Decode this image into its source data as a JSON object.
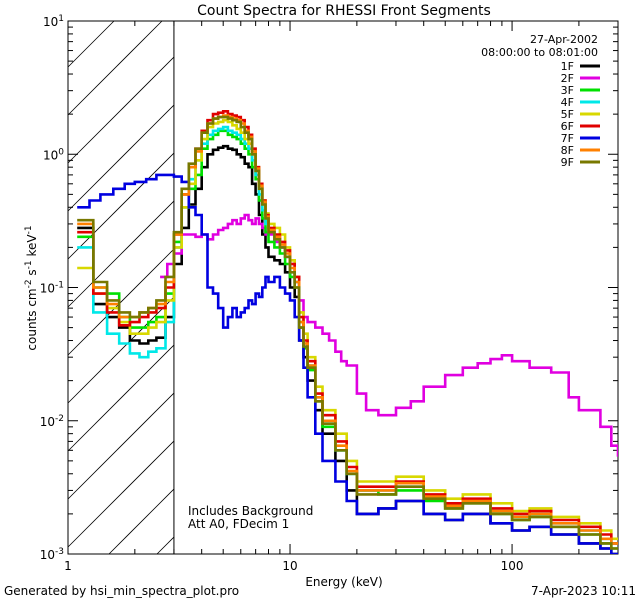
{
  "chart_data": {
    "type": "line",
    "title": "Count Spectra for RHESSI Front Segments",
    "xlabel": "Energy (keV)",
    "ylabel": "counts cm^-2 s^-1 keV^-1",
    "xscale": "log",
    "yscale": "log",
    "xlim": [
      1.0,
      300
    ],
    "ylim": [
      0.001,
      10
    ],
    "x_ticks": [
      1,
      10,
      100
    ],
    "x_tick_labels": [
      "1",
      "10",
      "100"
    ],
    "y_ticks": [
      0.001,
      0.01,
      0.1,
      1,
      10
    ],
    "y_tick_labels": [
      {
        "base": "10",
        "exp": "-3"
      },
      {
        "base": "10",
        "exp": "-2"
      },
      {
        "base": "10",
        "exp": "-1"
      },
      {
        "base": "10",
        "exp": "0"
      },
      {
        "base": "10",
        "exp": "1"
      }
    ],
    "hatched_region_keV": [
      1.0,
      3.0
    ],
    "date": "27-Apr-2002",
    "time_range": "08:00:00 to 08:01:00",
    "annotations": [
      "Includes Background",
      "Att A0, FDecim 1"
    ],
    "series": [
      {
        "name": "1F",
        "color": "#000000",
        "x": [
          1.1,
          1.3,
          1.5,
          1.7,
          1.9,
          2.1,
          2.3,
          2.5,
          2.75,
          3.0,
          3.25,
          3.5,
          3.75,
          4.0,
          4.25,
          4.5,
          4.75,
          5.0,
          5.25,
          5.5,
          5.75,
          6.0,
          6.25,
          6.5,
          6.75,
          7.0,
          7.25,
          7.5,
          7.75,
          8.0,
          8.5,
          9.0,
          9.5,
          10.0,
          10.5,
          11.0,
          11.5,
          12.0,
          13.0,
          14.0,
          16.0,
          18.0,
          20.0,
          25.0,
          30.0,
          40.0,
          50.0,
          60.0,
          80.0,
          100.0,
          120.0,
          150.0,
          200.0,
          250.0,
          280.0
        ],
        "y": [
          0.28,
          0.075,
          0.06,
          0.05,
          0.04,
          0.038,
          0.04,
          0.042,
          0.06,
          0.15,
          0.28,
          0.42,
          0.55,
          0.8,
          1.0,
          1.08,
          1.12,
          1.15,
          1.1,
          1.08,
          1.0,
          0.95,
          0.85,
          0.8,
          0.6,
          0.5,
          0.35,
          0.25,
          0.2,
          0.17,
          0.16,
          0.15,
          0.13,
          0.1,
          0.085,
          0.04,
          0.03,
          0.02,
          0.012,
          0.008,
          0.005,
          0.003,
          0.002,
          0.0022,
          0.0025,
          0.002,
          0.0018,
          0.002,
          0.0017,
          0.0015,
          0.0016,
          0.0014,
          0.0012,
          0.0011,
          0.001
        ]
      },
      {
        "name": "2F",
        "color": "#e000e0",
        "x": [
          2.6,
          2.8,
          3.0,
          3.25,
          3.5,
          3.75,
          4.0,
          4.25,
          4.5,
          4.75,
          5.0,
          5.25,
          5.5,
          5.75,
          6.0,
          6.25,
          6.5,
          6.75,
          7.0,
          7.25,
          7.5,
          7.75,
          8.0,
          8.5,
          9.0,
          9.5,
          10.0,
          10.5,
          11.0,
          11.5,
          12.0,
          13.0,
          14.0,
          15.0,
          16.0,
          17.0,
          18.0,
          20.0,
          22.0,
          25.0,
          28.0,
          30.0,
          35.0,
          40.0,
          50.0,
          60.0,
          70.0,
          80.0,
          90.0,
          100.0,
          120.0,
          150.0,
          180.0,
          200.0,
          250.0,
          280.0,
          300.0
        ],
        "y": [
          0.12,
          0.15,
          0.18,
          0.25,
          0.25,
          0.24,
          0.25,
          0.23,
          0.25,
          0.27,
          0.28,
          0.3,
          0.32,
          0.3,
          0.33,
          0.35,
          0.32,
          0.3,
          0.33,
          0.3,
          0.28,
          0.25,
          0.25,
          0.22,
          0.2,
          0.17,
          0.15,
          0.11,
          0.08,
          0.06,
          0.055,
          0.05,
          0.045,
          0.04,
          0.033,
          0.028,
          0.026,
          0.016,
          0.012,
          0.011,
          0.011,
          0.0125,
          0.014,
          0.018,
          0.022,
          0.025,
          0.027,
          0.029,
          0.031,
          0.028,
          0.025,
          0.023,
          0.015,
          0.012,
          0.009,
          0.0065,
          0.0055
        ]
      },
      {
        "name": "3F",
        "color": "#00e000",
        "x": [
          1.1,
          1.3,
          1.5,
          1.7,
          1.9,
          2.1,
          2.3,
          2.5,
          2.75,
          3.0,
          3.25,
          3.5,
          3.75,
          4.0,
          4.25,
          4.5,
          4.75,
          5.0,
          5.25,
          5.5,
          5.75,
          6.0,
          6.25,
          6.5,
          6.75,
          7.0,
          7.25,
          7.5,
          7.75,
          8.0,
          8.5,
          9.0,
          9.5,
          10.0,
          10.5,
          11.0,
          11.5,
          12.0,
          13.0,
          14.0,
          16.0,
          18.0,
          20.0,
          25.0,
          30.0,
          40.0,
          50.0,
          60.0,
          80.0,
          100.0,
          120.0,
          150.0,
          200.0,
          250.0,
          280.0
        ],
        "y": [
          0.24,
          0.1,
          0.09,
          0.06,
          0.05,
          0.05,
          0.055,
          0.06,
          0.09,
          0.22,
          0.4,
          0.55,
          0.7,
          1.1,
          1.3,
          1.4,
          1.5,
          1.5,
          1.4,
          1.35,
          1.3,
          1.2,
          1.1,
          1.0,
          0.8,
          0.65,
          0.45,
          0.33,
          0.26,
          0.22,
          0.2,
          0.18,
          0.15,
          0.12,
          0.1,
          0.05,
          0.035,
          0.024,
          0.014,
          0.009,
          0.006,
          0.004,
          0.003,
          0.0028,
          0.003,
          0.0025,
          0.0022,
          0.0024,
          0.002,
          0.0018,
          0.0019,
          0.0016,
          0.0014,
          0.0012,
          0.0011
        ]
      },
      {
        "name": "4F",
        "color": "#00e8e8",
        "x": [
          1.1,
          1.3,
          1.5,
          1.7,
          1.9,
          2.1,
          2.3,
          2.5,
          2.75,
          3.0,
          3.25,
          3.5,
          3.75,
          4.0,
          4.25,
          4.5,
          4.75,
          5.0,
          5.25,
          5.5,
          5.75,
          6.0,
          6.25,
          6.5,
          6.75,
          7.0,
          7.25,
          7.5,
          7.75,
          8.0,
          8.5,
          9.0,
          9.5,
          10.0,
          10.5,
          11.0,
          11.5,
          12.0,
          13.0,
          14.0,
          16.0,
          18.0,
          20.0,
          25.0,
          30.0,
          40.0,
          50.0,
          60.0,
          80.0,
          100.0,
          120.0,
          150.0,
          200.0,
          250.0,
          280.0
        ],
        "y": [
          0.2,
          0.065,
          0.045,
          0.038,
          0.032,
          0.03,
          0.033,
          0.035,
          0.055,
          0.2,
          0.4,
          0.65,
          0.9,
          1.2,
          1.4,
          1.5,
          1.55,
          1.6,
          1.5,
          1.45,
          1.4,
          1.3,
          1.2,
          1.1,
          0.9,
          0.7,
          0.5,
          0.38,
          0.3,
          0.26,
          0.23,
          0.2,
          0.17,
          0.13,
          0.11,
          0.055,
          0.038,
          0.026,
          0.015,
          0.01,
          0.006,
          0.004,
          0.003,
          0.003,
          0.0032,
          0.0026,
          0.0023,
          0.0025,
          0.0021,
          0.0019,
          0.002,
          0.0017,
          0.0015,
          0.0013,
          0.0012
        ]
      },
      {
        "name": "5F",
        "color": "#d8d800",
        "x": [
          1.1,
          1.3,
          1.5,
          1.7,
          1.9,
          2.1,
          2.3,
          2.5,
          2.75,
          3.0,
          3.25,
          3.5,
          3.75,
          4.0,
          4.25,
          4.5,
          4.75,
          5.0,
          5.25,
          5.5,
          5.75,
          6.0,
          6.25,
          6.5,
          6.75,
          7.0,
          7.25,
          7.5,
          7.75,
          8.0,
          8.5,
          9.0,
          9.5,
          10.0,
          10.5,
          11.0,
          11.5,
          12.0,
          13.0,
          14.0,
          16.0,
          18.0,
          20.0,
          25.0,
          30.0,
          40.0,
          50.0,
          60.0,
          80.0,
          100.0,
          120.0,
          150.0,
          200.0,
          250.0,
          280.0
        ],
        "y": [
          0.14,
          0.09,
          0.07,
          0.055,
          0.045,
          0.045,
          0.05,
          0.055,
          0.08,
          0.2,
          0.4,
          0.6,
          0.9,
          1.3,
          1.6,
          1.7,
          1.75,
          1.8,
          1.75,
          1.65,
          1.55,
          1.45,
          1.3,
          1.2,
          1.0,
          0.8,
          0.58,
          0.45,
          0.36,
          0.3,
          0.28,
          0.25,
          0.2,
          0.16,
          0.12,
          0.065,
          0.045,
          0.03,
          0.018,
          0.012,
          0.008,
          0.005,
          0.0035,
          0.0035,
          0.0038,
          0.003,
          0.0026,
          0.0028,
          0.0024,
          0.0021,
          0.0022,
          0.0019,
          0.0017,
          0.0015,
          0.0013
        ]
      },
      {
        "name": "6F",
        "color": "#e00000",
        "x": [
          1.1,
          1.3,
          1.5,
          1.7,
          1.9,
          2.1,
          2.3,
          2.5,
          2.75,
          3.0,
          3.25,
          3.5,
          3.75,
          4.0,
          4.25,
          4.5,
          4.75,
          5.0,
          5.25,
          5.5,
          5.75,
          6.0,
          6.25,
          6.5,
          6.75,
          7.0,
          7.25,
          7.5,
          7.75,
          8.0,
          8.5,
          9.0,
          9.5,
          10.0,
          10.5,
          11.0,
          11.5,
          12.0,
          13.0,
          14.0,
          16.0,
          18.0,
          20.0,
          25.0,
          30.0,
          40.0,
          50.0,
          60.0,
          80.0,
          100.0,
          120.0,
          150.0,
          200.0,
          250.0,
          280.0
        ],
        "y": [
          0.26,
          0.09,
          0.065,
          0.052,
          0.055,
          0.06,
          0.065,
          0.07,
          0.1,
          0.25,
          0.5,
          0.8,
          1.1,
          1.5,
          1.8,
          2.0,
          2.05,
          2.1,
          2.0,
          1.95,
          1.9,
          1.8,
          1.6,
          1.4,
          1.1,
          0.8,
          0.6,
          0.45,
          0.35,
          0.28,
          0.25,
          0.22,
          0.19,
          0.15,
          0.12,
          0.06,
          0.04,
          0.028,
          0.016,
          0.011,
          0.007,
          0.0045,
          0.0032,
          0.0032,
          0.0035,
          0.0028,
          0.0024,
          0.0026,
          0.0022,
          0.002,
          0.0021,
          0.0018,
          0.0016,
          0.0014,
          0.0012
        ]
      },
      {
        "name": "7F",
        "color": "#0000e0",
        "x": [
          1.1,
          1.25,
          1.4,
          1.6,
          1.8,
          2.0,
          2.25,
          2.5,
          2.75,
          3.0,
          3.25,
          3.5,
          3.75,
          4.0,
          4.25,
          4.5,
          4.75,
          5.0,
          5.25,
          5.5,
          5.75,
          6.0,
          6.25,
          6.5,
          6.75,
          7.0,
          7.25,
          7.5,
          7.75,
          8.0,
          8.5,
          9.0,
          9.5,
          10.0,
          10.5,
          11.0,
          11.5,
          12.0,
          13.0,
          14.0,
          16.0,
          18.0,
          20.0,
          25.0,
          30.0,
          40.0,
          50.0,
          60.0,
          80.0,
          100.0,
          120.0,
          150.0,
          200.0,
          250.0,
          280.0
        ],
        "y": [
          0.4,
          0.45,
          0.5,
          0.55,
          0.6,
          0.62,
          0.65,
          0.7,
          0.7,
          0.68,
          0.62,
          0.4,
          0.35,
          0.25,
          0.1,
          0.09,
          0.07,
          0.05,
          0.06,
          0.07,
          0.06,
          0.065,
          0.07,
          0.08,
          0.075,
          0.09,
          0.085,
          0.1,
          0.12,
          0.11,
          0.12,
          0.1,
          0.09,
          0.08,
          0.06,
          0.04,
          0.025,
          0.015,
          0.008,
          0.005,
          0.0035,
          0.0025,
          0.002,
          0.0022,
          0.0025,
          0.002,
          0.0018,
          0.002,
          0.0017,
          0.0015,
          0.0016,
          0.0014,
          0.0012,
          0.0011,
          0.001
        ]
      },
      {
        "name": "8F",
        "color": "#ff8000",
        "x": [
          1.1,
          1.3,
          1.5,
          1.7,
          1.9,
          2.1,
          2.3,
          2.5,
          2.75,
          3.0,
          3.25,
          3.5,
          3.75,
          4.0,
          4.25,
          4.5,
          4.75,
          5.0,
          5.25,
          5.5,
          5.75,
          6.0,
          6.25,
          6.5,
          6.75,
          7.0,
          7.25,
          7.5,
          7.75,
          8.0,
          8.5,
          9.0,
          9.5,
          10.0,
          10.5,
          11.0,
          11.5,
          12.0,
          13.0,
          14.0,
          16.0,
          18.0,
          20.0,
          25.0,
          30.0,
          40.0,
          50.0,
          60.0,
          80.0,
          100.0,
          120.0,
          150.0,
          200.0,
          250.0,
          280.0
        ],
        "y": [
          0.3,
          0.1,
          0.075,
          0.06,
          0.06,
          0.065,
          0.07,
          0.075,
          0.11,
          0.25,
          0.5,
          0.8,
          1.05,
          1.45,
          1.7,
          1.85,
          1.9,
          1.95,
          1.9,
          1.85,
          1.8,
          1.7,
          1.5,
          1.35,
          1.05,
          0.78,
          0.58,
          0.44,
          0.34,
          0.27,
          0.24,
          0.21,
          0.18,
          0.14,
          0.11,
          0.055,
          0.038,
          0.026,
          0.015,
          0.01,
          0.0065,
          0.0042,
          0.003,
          0.003,
          0.0034,
          0.0027,
          0.0023,
          0.0025,
          0.0021,
          0.0019,
          0.002,
          0.0017,
          0.0015,
          0.0013,
          0.0012
        ]
      },
      {
        "name": "9F",
        "color": "#787800",
        "x": [
          1.1,
          1.3,
          1.5,
          1.7,
          1.9,
          2.1,
          2.3,
          2.5,
          2.75,
          3.0,
          3.25,
          3.5,
          3.75,
          4.0,
          4.25,
          4.5,
          4.75,
          5.0,
          5.25,
          5.5,
          5.75,
          6.0,
          6.25,
          6.5,
          6.75,
          7.0,
          7.25,
          7.5,
          7.75,
          8.0,
          8.5,
          9.0,
          9.5,
          10.0,
          10.5,
          11.0,
          11.5,
          12.0,
          13.0,
          14.0,
          16.0,
          18.0,
          20.0,
          25.0,
          30.0,
          40.0,
          50.0,
          60.0,
          80.0,
          100.0,
          120.0,
          150.0,
          200.0,
          250.0,
          280.0
        ],
        "y": [
          0.32,
          0.11,
          0.08,
          0.065,
          0.06,
          0.065,
          0.07,
          0.08,
          0.12,
          0.26,
          0.55,
          0.85,
          1.1,
          1.45,
          1.7,
          1.85,
          1.9,
          1.9,
          1.85,
          1.8,
          1.75,
          1.6,
          1.45,
          1.3,
          1.0,
          0.75,
          0.55,
          0.42,
          0.33,
          0.26,
          0.23,
          0.2,
          0.17,
          0.13,
          0.1,
          0.05,
          0.036,
          0.025,
          0.014,
          0.0095,
          0.006,
          0.004,
          0.0028,
          0.0028,
          0.0032,
          0.0026,
          0.0022,
          0.0024,
          0.002,
          0.0018,
          0.0019,
          0.0016,
          0.0014,
          0.0012,
          0.0011
        ]
      }
    ]
  },
  "footer": {
    "generated_by": "Generated by hsi_min_spectra_plot.pro",
    "timestamp": "7-Apr-2023 10:11"
  }
}
